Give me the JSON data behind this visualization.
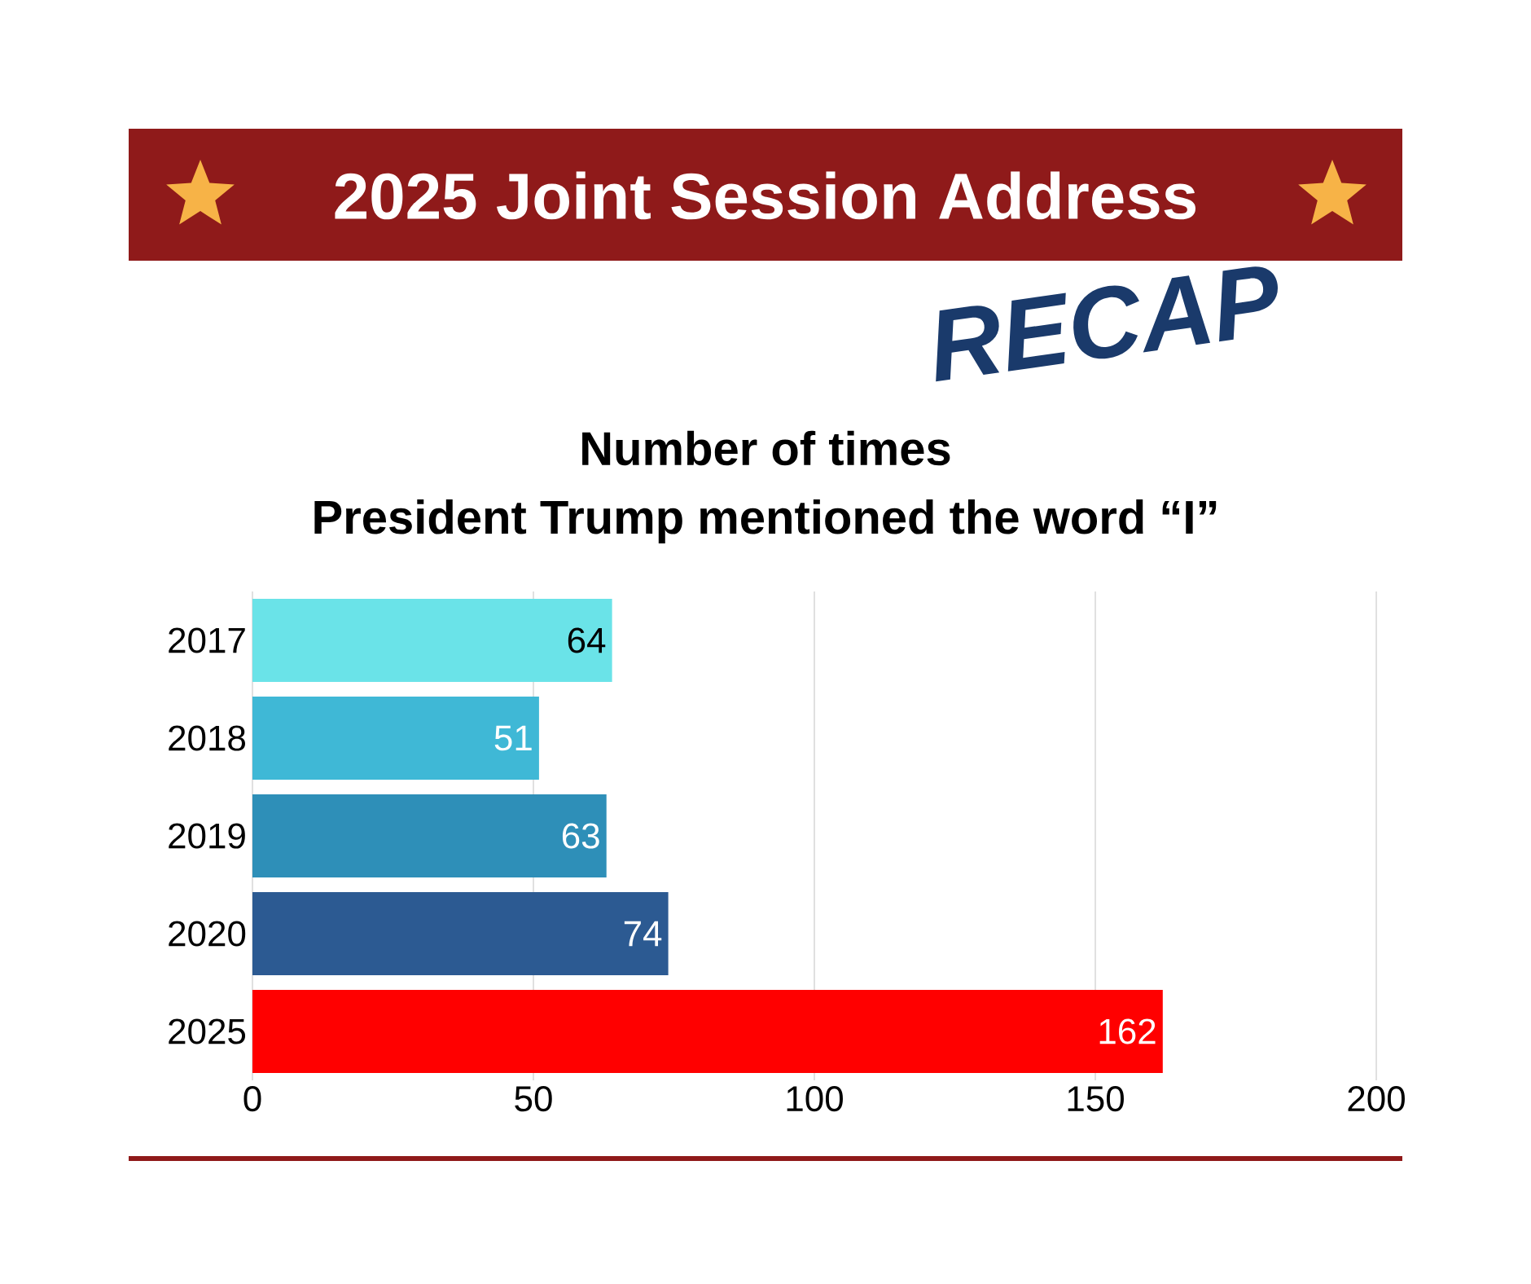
{
  "chart_data": {
    "type": "bar",
    "orientation": "horizontal",
    "title": "2025 Joint Session Address",
    "subtitle": "RECAP",
    "annotations": [
      "Number of times",
      "President Trump mentioned the word “I”"
    ],
    "categories": [
      "2017",
      "2018",
      "2019",
      "2020",
      "2025"
    ],
    "values": [
      64,
      51,
      63,
      74,
      162
    ],
    "colors": [
      "#6ae3e8",
      "#3fb8d6",
      "#2e8fb8",
      "#2c5a92",
      "#ff0000"
    ],
    "xlim": [
      0,
      200
    ],
    "xticks": [
      0,
      50,
      100,
      150,
      200
    ],
    "grid": "x",
    "data_labels": true
  }
}
